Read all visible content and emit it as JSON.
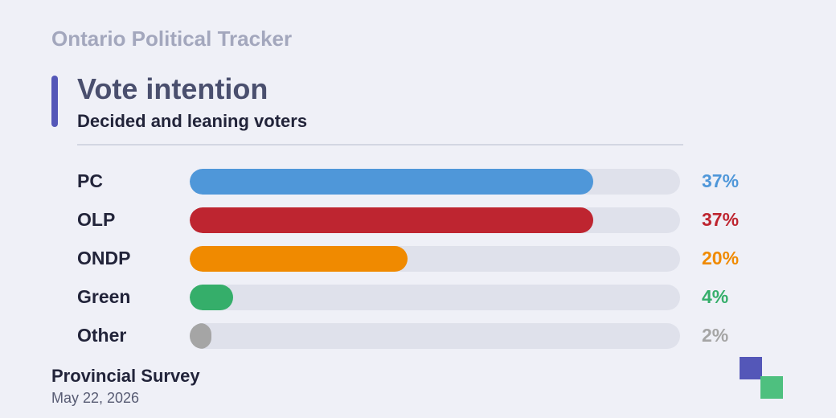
{
  "header": {
    "brand": "Ontario Political Tracker",
    "title": "Vote intention",
    "subtitle": "Decided and leaning voters"
  },
  "chart_data": {
    "type": "bar",
    "orientation": "horizontal",
    "title": "Vote intention",
    "subtitle": "Decided and leaning voters",
    "categories": [
      "PC",
      "OLP",
      "ONDP",
      "Green",
      "Other"
    ],
    "values": [
      37,
      37,
      20,
      4,
      2
    ],
    "value_labels": [
      "37%",
      "37%",
      "20%",
      "4%",
      "2%"
    ],
    "colors": [
      "#4f97d9",
      "#be2530",
      "#f08a00",
      "#35ae6a",
      "#a5a5a5"
    ],
    "xlim": [
      0,
      45
    ],
    "grid": false,
    "legend": "none"
  },
  "footer": {
    "source": "Provincial Survey",
    "date": "May 22, 2026"
  },
  "colors": {
    "accent": "#5457b8",
    "logo_secondary": "#4ec07f",
    "track": "#dfe1eb",
    "background": "#eff0f7"
  }
}
